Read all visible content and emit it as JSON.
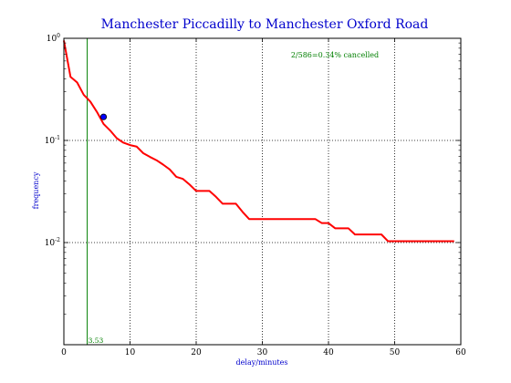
{
  "chart_data": {
    "type": "line",
    "title": "Manchester Piccadilly to Manchester Oxford Road",
    "xlabel": "delay/minutes",
    "ylabel": "frequency",
    "xlim": [
      0,
      60
    ],
    "ylim": [
      0.001,
      1
    ],
    "yscale": "log",
    "grid": true,
    "x_ticks": [
      "0",
      "10",
      "20",
      "30",
      "40",
      "50",
      "60"
    ],
    "y_ticks": [
      {
        "base": "10",
        "exp": "0",
        "value": 1
      },
      {
        "base": "10",
        "exp": "-1",
        "value": 0.1
      },
      {
        "base": "10",
        "exp": "-2",
        "value": 0.01
      }
    ],
    "annotation": "2/586=0.34% cancelled",
    "vline": {
      "x": 3.53,
      "label": "3.53",
      "color": "#007f00"
    },
    "point": {
      "x": 6,
      "y": 0.17,
      "color": "#0000ff"
    },
    "series": [
      {
        "color": "#ff0000",
        "x": [
          0,
          1,
          2,
          3,
          4,
          5,
          6,
          7,
          8,
          9,
          10,
          11,
          12,
          13,
          14,
          15,
          16,
          17,
          18,
          19,
          20,
          21,
          22,
          23,
          24,
          25,
          26,
          27,
          28,
          29,
          30,
          31,
          32,
          33,
          34,
          35,
          36,
          37,
          38,
          39,
          40,
          41,
          42,
          43,
          44,
          45,
          46,
          47,
          48,
          49,
          50,
          51,
          52,
          53,
          54,
          55,
          56,
          57,
          58,
          59
        ],
        "y": [
          0.95,
          0.42,
          0.37,
          0.28,
          0.24,
          0.19,
          0.145,
          0.125,
          0.105,
          0.095,
          0.09,
          0.087,
          0.075,
          0.069,
          0.064,
          0.058,
          0.052,
          0.044,
          0.042,
          0.037,
          0.032,
          0.032,
          0.032,
          0.028,
          0.024,
          0.024,
          0.024,
          0.02,
          0.017,
          0.017,
          0.017,
          0.017,
          0.017,
          0.017,
          0.017,
          0.017,
          0.017,
          0.017,
          0.017,
          0.0155,
          0.0155,
          0.0138,
          0.0138,
          0.0138,
          0.012,
          0.012,
          0.012,
          0.012,
          0.012,
          0.0103,
          0.0103,
          0.0103,
          0.0103,
          0.0103,
          0.0103,
          0.0103,
          0.0103,
          0.0103,
          0.0103,
          0.0103
        ]
      }
    ]
  }
}
